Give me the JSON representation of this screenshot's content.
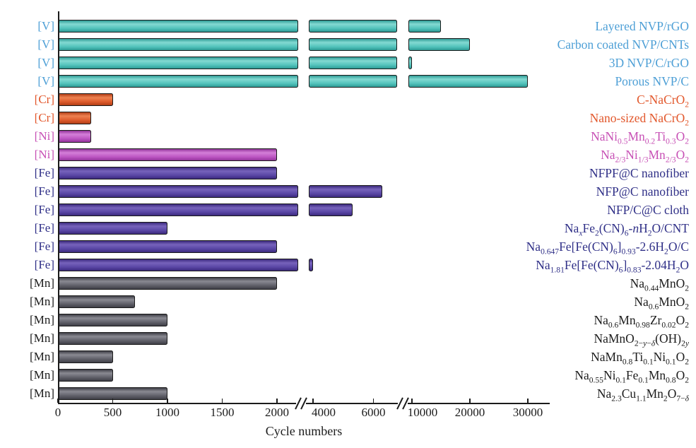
{
  "chart_data": {
    "type": "bar",
    "orientation": "horizontal",
    "title": "",
    "xlabel": "Cycle numbers",
    "ylabel": "",
    "grid": false,
    "legend": "none",
    "x_axis_ticks": [
      0,
      500,
      1000,
      1500,
      2000,
      4000,
      6000,
      10000,
      20000,
      30000
    ],
    "x_axis_breaks": [
      {
        "after": 2000,
        "before": 4000
      },
      {
        "after": 6000,
        "before": 10000
      }
    ],
    "value_unit": "cycles",
    "groups": {
      "V": {
        "tag": "[V]",
        "text": "#4d9fd6",
        "base": "#52c2bb",
        "light": "#83dad2",
        "dark": "#2e9b95"
      },
      "Cr": {
        "tag": "[Cr]",
        "text": "#e2572b",
        "base": "#dd5a2b",
        "light": "#ee8150",
        "dark": "#b23f17"
      },
      "Ni": {
        "tag": "[Ni]",
        "text": "#c750b5",
        "base": "#bc55c2",
        "light": "#d47fd8",
        "dark": "#93349b"
      },
      "Fe": {
        "tag": "[Fe]",
        "text": "#2f2f87",
        "base": "#5946a4",
        "light": "#7763bc",
        "dark": "#3c2a7e"
      },
      "Mn": {
        "tag": "[Mn]",
        "text": "#1c1c1c",
        "base": "#5f5f68",
        "light": "#8a8a92",
        "dark": "#3f3f47"
      }
    },
    "rows": [
      {
        "group": "V",
        "label": "Layered NVP/rGO",
        "cycles": 15000
      },
      {
        "group": "V",
        "label": "Carbon coated NVP/CNTs",
        "cycles": 20000
      },
      {
        "group": "V",
        "label": "3D NVP/C/rGO",
        "cycles": 10000
      },
      {
        "group": "V",
        "label": "Porous NVP/C",
        "cycles": 30000
      },
      {
        "group": "Cr",
        "label": "C-NaCrO~2~",
        "cycles": 500
      },
      {
        "group": "Cr",
        "label": "Nano-sized NaCrO~2~",
        "cycles": 300
      },
      {
        "group": "Ni",
        "label": "NaNi~0.5~Mn~0.2~Ti~0.3~O~2~",
        "cycles": 300
      },
      {
        "group": "Ni",
        "label": "Na~2/3~Ni~1/3~Mn~2/3~O~2~",
        "cycles": 2000
      },
      {
        "group": "Fe",
        "label": "NFPF@C nanofiber",
        "cycles": 2000
      },
      {
        "group": "Fe",
        "label": "NFP@C nanofiber",
        "cycles": 6300
      },
      {
        "group": "Fe",
        "label": "NFP/C@C cloth",
        "cycles": 5300
      },
      {
        "group": "Fe",
        "label": "Na~*x*~Fe~2~(CN)~6~-*n*H~2~O/CNT",
        "cycles": 1000
      },
      {
        "group": "Fe",
        "label": "Na~0.647~Fe[Fe(CN)~6~]~0.93~-2.6H~2~O/C",
        "cycles": 2000
      },
      {
        "group": "Fe",
        "label": "Na~1.81~Fe[Fe(CN)~6~]~0.83~-2.04H~2~O",
        "cycles": 4000
      },
      {
        "group": "Mn",
        "label": "Na~0.44~MnO~2~",
        "cycles": 2000
      },
      {
        "group": "Mn",
        "label": "Na~0.6~MnO~2~",
        "cycles": 700
      },
      {
        "group": "Mn",
        "label": "Na~0.6~Mn~0.98~Zr~0.02~O~2~",
        "cycles": 1000
      },
      {
        "group": "Mn",
        "label": "NaMnO~2−*y*−*δ*~(OH)~2*y*~",
        "cycles": 1000
      },
      {
        "group": "Mn",
        "label": "NaMn~0.8~Ti~0.1~Ni~0.1~O~2~",
        "cycles": 500
      },
      {
        "group": "Mn",
        "label": "Na~0.55~Ni~0.1~Fe~0.1~Mn~0.8~O~2~",
        "cycles": 500
      },
      {
        "group": "Mn",
        "label": "Na~2.3~Cu~1.1~Mn~2~O~7−*δ*~",
        "cycles": 1000
      }
    ]
  }
}
